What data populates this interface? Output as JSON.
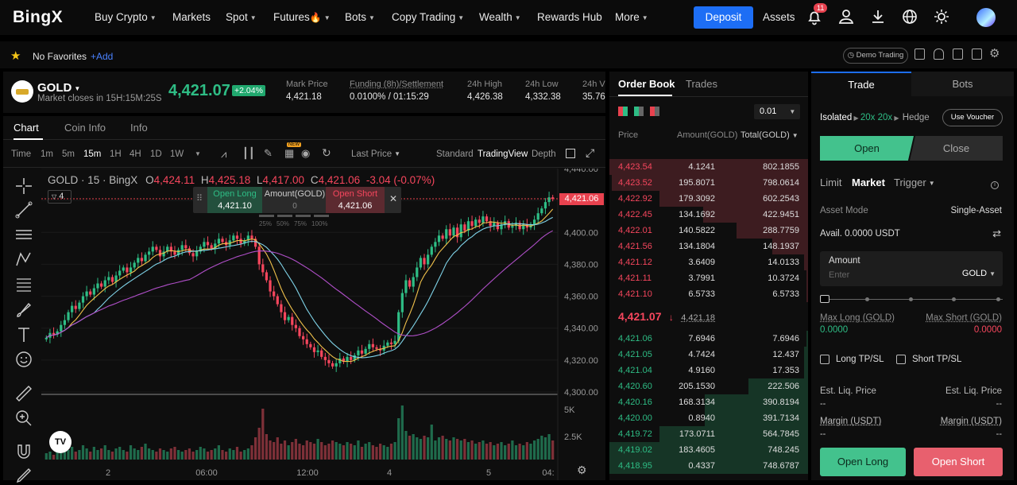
{
  "header": {
    "logo": "BingX",
    "nav": [
      {
        "label": "Buy Crypto",
        "caret": true
      },
      {
        "label": "Markets",
        "caret": false
      },
      {
        "label": "Spot",
        "caret": true
      },
      {
        "label": "Futures",
        "caret": true,
        "fire": true
      },
      {
        "label": "Bots",
        "caret": true
      },
      {
        "label": "Copy Trading",
        "caret": true
      },
      {
        "label": "Wealth",
        "caret": true
      },
      {
        "label": "Rewards Hub",
        "caret": false
      },
      {
        "label": "More",
        "caret": true
      }
    ],
    "deposit": "Deposit",
    "assets": "Assets",
    "notif_count": "11"
  },
  "favorites": {
    "label": "No Favorites",
    "add": "+Add",
    "demo": "Demo Trading"
  },
  "ticker": {
    "symbol": "GOLD",
    "subtitle": "Market closes in 15H:15M:25S",
    "price": "4,421.07",
    "change": "+2.04%",
    "stats": [
      {
        "label": "Mark Price",
        "value": "4,421.18"
      },
      {
        "label": "Funding (8h)/Settlement",
        "value": "0.0100% / 01:15:29"
      },
      {
        "label": "24h High",
        "value": "4,426.38"
      },
      {
        "label": "24h Low",
        "value": "4,332.38"
      },
      {
        "label": "24h V",
        "value": "35.76"
      }
    ]
  },
  "chart_tabs": [
    "Chart",
    "Coin Info",
    "Info"
  ],
  "toolbar": {
    "time": "Time",
    "intervals": [
      "1m",
      "5m",
      "15m",
      "1H",
      "4H",
      "1D",
      "1W"
    ],
    "last_price": "Last Price",
    "views": [
      "Standard",
      "TradingView",
      "Depth"
    ],
    "new_badge": "NEW"
  },
  "chart": {
    "title": "GOLD · 15 · BingX",
    "ohlc": {
      "o": "4,424.11",
      "h": "4,425.18",
      "l": "4,417.00",
      "c": "4,421.06",
      "chg": "-3.04 (-0.07%)"
    },
    "indicator_count": "4",
    "quick": {
      "long_label": "Open Long",
      "long_price": "4,421.10",
      "amount_label": "Amount(GOLD)",
      "amount": "0",
      "short_label": "Open Short",
      "short_price": "4,421.06",
      "pcts": [
        "25%",
        "50%",
        "75%",
        "100%"
      ]
    },
    "price_label": "4,421.06",
    "y_ticks": [
      "4,440.00",
      "4,420.00",
      "4,400.00",
      "4,380.00",
      "4,360.00",
      "4,340.00",
      "4,320.00",
      "4,300.00"
    ],
    "vol_ticks": [
      "5K",
      "2.5K"
    ],
    "x_ticks": [
      "2",
      "06:00",
      "12:00",
      "4",
      "5",
      "04:"
    ]
  },
  "chart_data": {
    "type": "candlestick",
    "ylim": [
      4300,
      4440
    ],
    "last": 4421.06,
    "closes": [
      4334,
      4337,
      4336,
      4338,
      4342,
      4345,
      4350,
      4354,
      4352,
      4356,
      4360,
      4363,
      4361,
      4365,
      4368,
      4366,
      4370,
      4372,
      4369,
      4373,
      4376,
      4378,
      4375,
      4378,
      4381,
      4384,
      4382,
      4386,
      4388,
      4391,
      4389,
      4385,
      4388,
      4391,
      4388,
      4386,
      4389,
      4392,
      4390,
      4387,
      4385,
      4388,
      4391,
      4394,
      4392,
      4390,
      4393,
      4396,
      4394,
      4392,
      4395,
      4398,
      4396,
      4393,
      4395,
      4398,
      4396,
      4391,
      4380,
      4375,
      4370,
      4363,
      4360,
      4355,
      4350,
      4345,
      4347,
      4342,
      4340,
      4335,
      4333,
      4330,
      4328,
      4325,
      4326,
      4322,
      4320,
      4318,
      4316,
      4318,
      4321,
      4319,
      4322,
      4320,
      4323,
      4326,
      4324,
      4327,
      4330,
      4328,
      4327,
      4326,
      4329,
      4331,
      4330,
      4332,
      4350,
      4362,
      4370,
      4366,
      4372,
      4378,
      4384,
      4380,
      4386,
      4391,
      4394,
      4398,
      4396,
      4402,
      4398,
      4403,
      4397,
      4405,
      4401,
      4407,
      4404,
      4408,
      4406,
      4410,
      4407,
      4404,
      4406,
      4402,
      4405,
      4407,
      4403,
      4404,
      4406,
      4402,
      4405,
      4403,
      4405,
      4408,
      4412,
      4415,
      4419,
      4422,
      4421
    ],
    "volumes": [
      0.4,
      0.5,
      0.3,
      0.6,
      0.5,
      0.7,
      0.6,
      0.8,
      0.5,
      0.6,
      0.9,
      0.7,
      0.5,
      0.8,
      0.6,
      0.7,
      0.9,
      0.6,
      0.5,
      0.7,
      0.8,
      0.6,
      0.5,
      0.9,
      0.7,
      0.6,
      0.8,
      1.0,
      0.7,
      0.6,
      0.5,
      0.7,
      0.6,
      0.5,
      0.7,
      0.8,
      0.6,
      0.5,
      0.6,
      0.7,
      0.5,
      0.6,
      0.8,
      0.7,
      0.5,
      0.6,
      0.7,
      0.9,
      0.6,
      0.5,
      0.7,
      0.6,
      0.8,
      0.5,
      0.6,
      0.7,
      0.9,
      1.4,
      2.0,
      3.2,
      1.6,
      1.2,
      1.1,
      1.4,
      1.0,
      1.2,
      0.9,
      1.1,
      1.3,
      1.0,
      0.9,
      1.2,
      1.1,
      1.0,
      1.3,
      1.1,
      0.9,
      1.0,
      1.2,
      1.1,
      1.0,
      0.9,
      1.1,
      1.0,
      0.9,
      1.2,
      0.8,
      1.0,
      1.1,
      0.9,
      0.8,
      1.0,
      0.9,
      0.8,
      1.0,
      1.1,
      2.6,
      3.4,
      1.8,
      1.5,
      1.6,
      1.4,
      1.3,
      1.5,
      1.4,
      2.2,
      1.2,
      1.4,
      1.5,
      1.3,
      1.2,
      1.4,
      1.3,
      1.2,
      1.3,
      1.1,
      1.2,
      1.0,
      1.1,
      1.2,
      1.0,
      1.1,
      0.9,
      1.0,
      1.1,
      0.9,
      1.0,
      1.2,
      0.9,
      1.0,
      0.9,
      1.1,
      1.0,
      1.2,
      1.3,
      1.5,
      1.4,
      1.6,
      1.2
    ]
  },
  "orderbook": {
    "tabs": [
      "Order Book",
      "Trades"
    ],
    "precision": "0.01",
    "cols": [
      "Price",
      "Amount(GOLD)",
      "Total(GOLD)"
    ],
    "asks": [
      {
        "p": "4,423.54",
        "a": "4.1241",
        "t": "802.1855",
        "d": 1.0
      },
      {
        "p": "4,423.52",
        "a": "195.8071",
        "t": "798.0614",
        "d": 0.99
      },
      {
        "p": "4,422.92",
        "a": "179.3092",
        "t": "602.2543",
        "d": 0.75
      },
      {
        "p": "4,422.45",
        "a": "134.1692",
        "t": "422.9451",
        "d": 0.53
      },
      {
        "p": "4,422.01",
        "a": "140.5822",
        "t": "288.7759",
        "d": 0.36
      },
      {
        "p": "4,421.56",
        "a": "134.1804",
        "t": "148.1937",
        "d": 0.18
      },
      {
        "p": "4,421.12",
        "a": "3.6409",
        "t": "14.0133",
        "d": 0.02
      },
      {
        "p": "4,421.11",
        "a": "3.7991",
        "t": "10.3724",
        "d": 0.01
      },
      {
        "p": "4,421.10",
        "a": "6.5733",
        "t": "6.5733",
        "d": 0.01
      }
    ],
    "mid": "4,421.07",
    "mark": "4,421.18",
    "bids": [
      {
        "p": "4,421.06",
        "a": "7.6946",
        "t": "7.6946",
        "d": 0.01
      },
      {
        "p": "4,421.05",
        "a": "4.7424",
        "t": "12.437",
        "d": 0.02
      },
      {
        "p": "4,421.04",
        "a": "4.9160",
        "t": "17.353",
        "d": 0.02
      },
      {
        "p": "4,420.60",
        "a": "205.1530",
        "t": "222.506",
        "d": 0.3
      },
      {
        "p": "4,420.16",
        "a": "168.3134",
        "t": "390.8194",
        "d": 0.52
      },
      {
        "p": "4,420.00",
        "a": "0.8940",
        "t": "391.7134",
        "d": 0.52
      },
      {
        "p": "4,419.72",
        "a": "173.0711",
        "t": "564.7845",
        "d": 0.75
      },
      {
        "p": "4,419.02",
        "a": "183.4605",
        "t": "748.245",
        "d": 1.0
      },
      {
        "p": "4,418.95",
        "a": "0.4337",
        "t": "748.6787",
        "d": 1.0
      }
    ]
  },
  "trade": {
    "tabs": [
      "Trade",
      "Bots"
    ],
    "margin_mode": "Isolated",
    "leverage": "20x 20x",
    "hedge": "Hedge",
    "voucher": "Use Voucher",
    "open": "Open",
    "close": "Close",
    "order_types": [
      "Limit",
      "Market",
      "Trigger"
    ],
    "asset_mode_label": "Asset Mode",
    "asset_mode": "Single-Asset",
    "avail": "Avail. 0.0000 USDT",
    "amount_label": "Amount",
    "amount_placeholder": "Enter",
    "unit": "GOLD",
    "max_long_label": "Max Long (GOLD)",
    "max_long": "0.0000",
    "max_short_label": "Max Short (GOLD)",
    "max_short": "0.0000",
    "long_tpsl": "Long TP/SL",
    "short_tpsl": "Short TP/SL",
    "liq_label": "Est. Liq. Price",
    "liq_value": "--",
    "margin_label": "Margin (USDT)",
    "margin_value": "--",
    "open_long": "Open Long",
    "open_short": "Open Short"
  }
}
